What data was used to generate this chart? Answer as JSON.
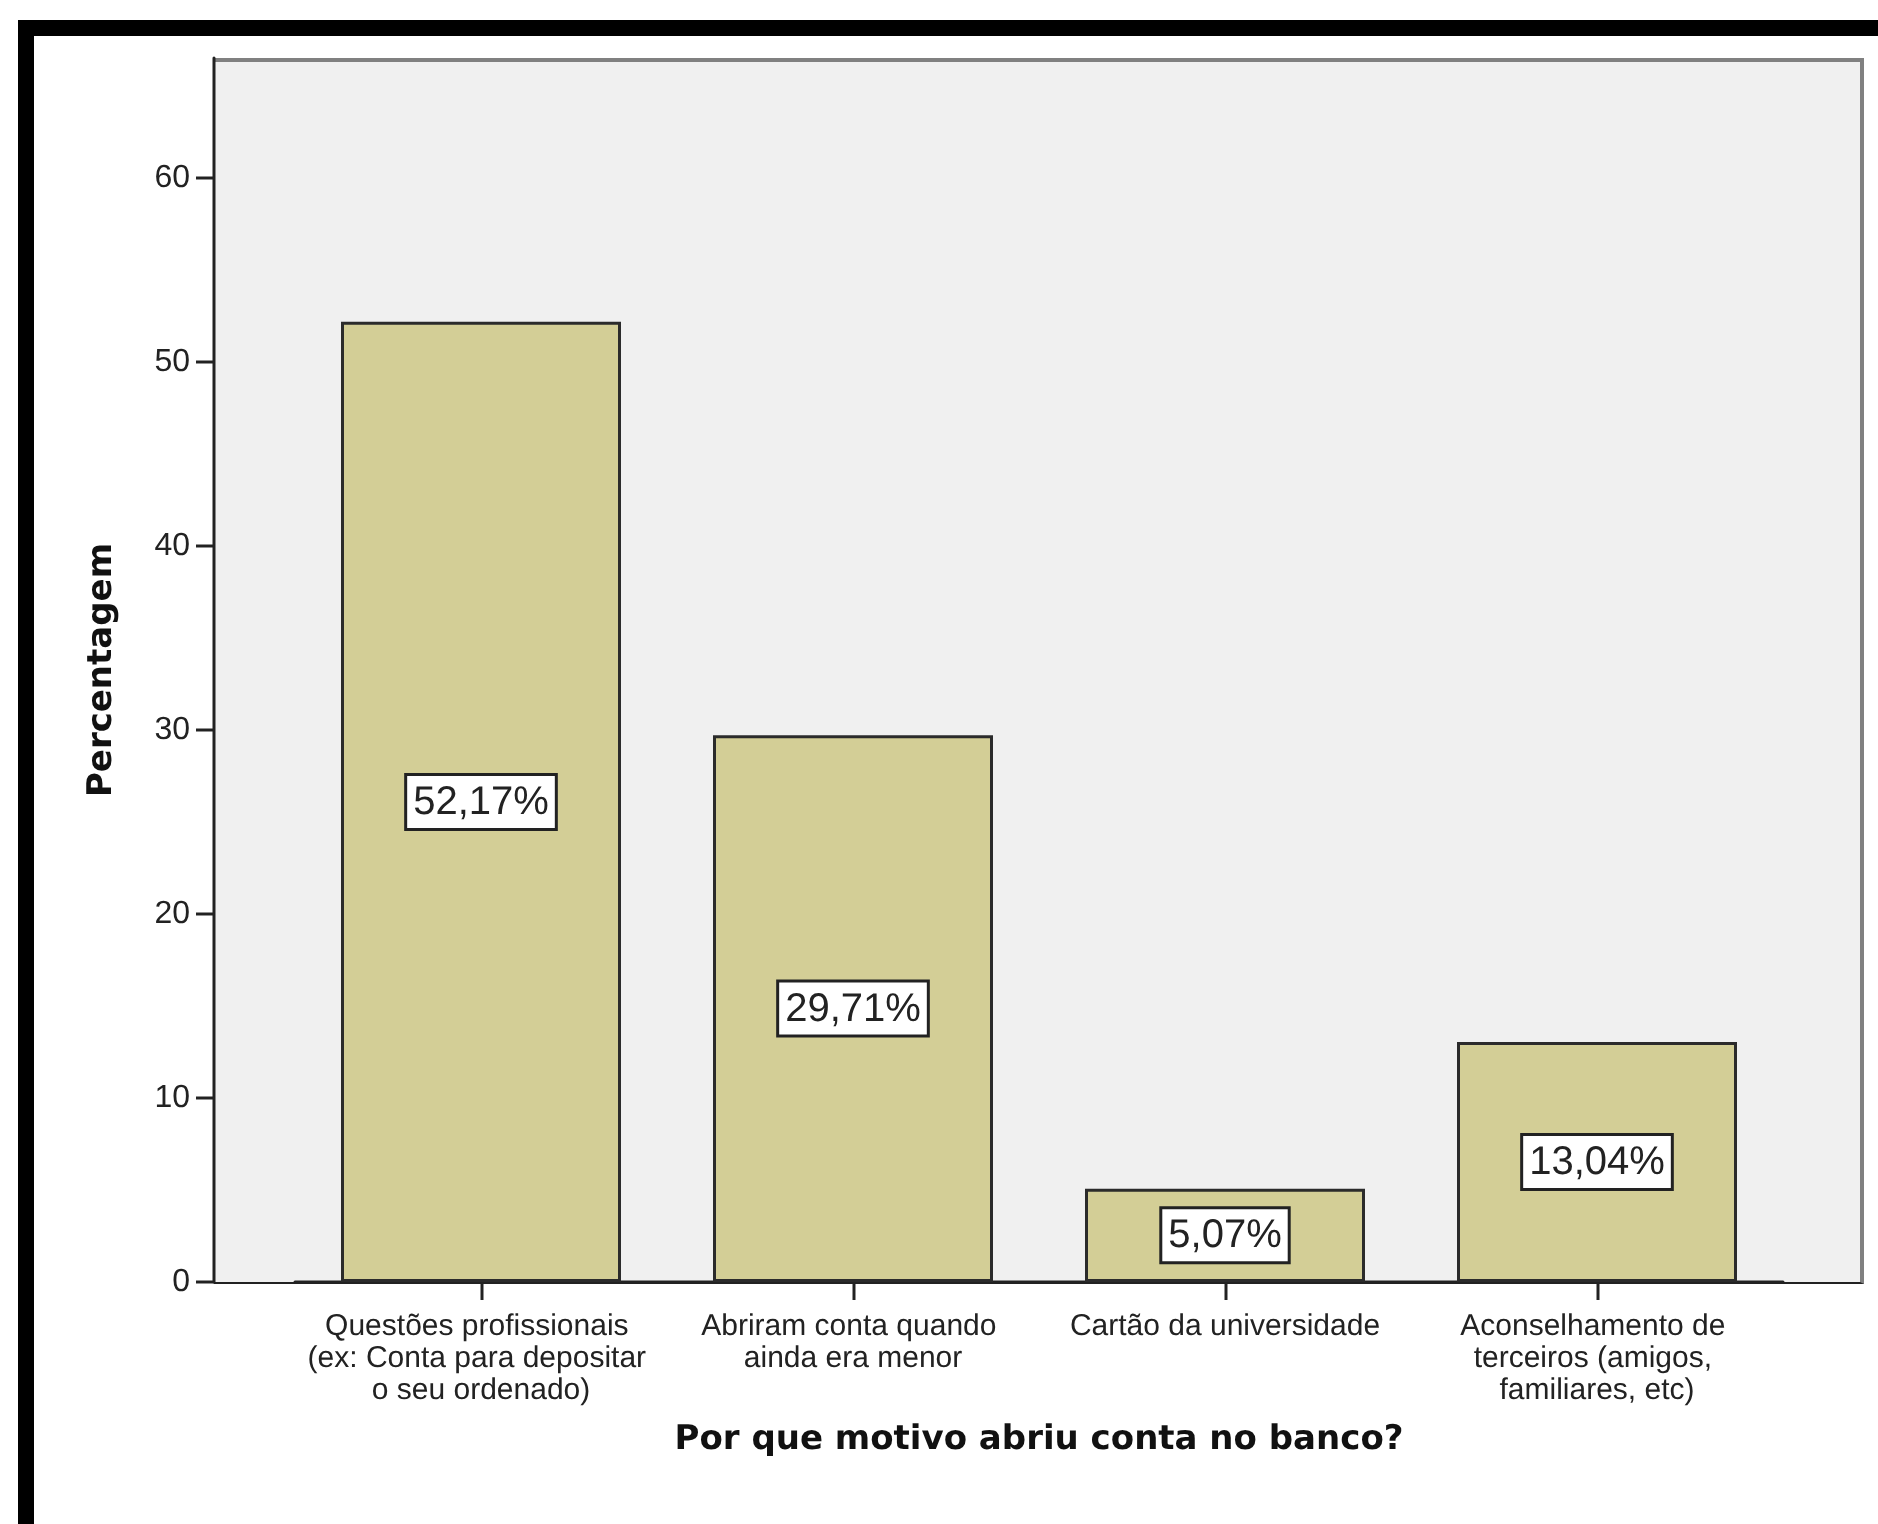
{
  "chart_data": {
    "type": "bar",
    "xlabel": "Por que motivo abriu conta no banco?",
    "ylabel": "Percentagem",
    "categories": [
      "Questões profissionais (ex: Conta para depositar o seu ordenado)",
      "Abriram conta quando ainda era menor",
      "Cartão da universidade",
      "Aconselhamento de terceiros (amigos, familiares, etc)"
    ],
    "values": [
      52.17,
      29.71,
      5.07,
      13.04
    ],
    "color": "#d3ce96",
    "value_labels": [
      "52,17%",
      "29,71%",
      "5,07%",
      "13,04%"
    ],
    "ylim": [
      0,
      66.5
    ],
    "yticks": [
      0,
      10,
      20,
      30,
      40,
      50,
      60
    ]
  }
}
